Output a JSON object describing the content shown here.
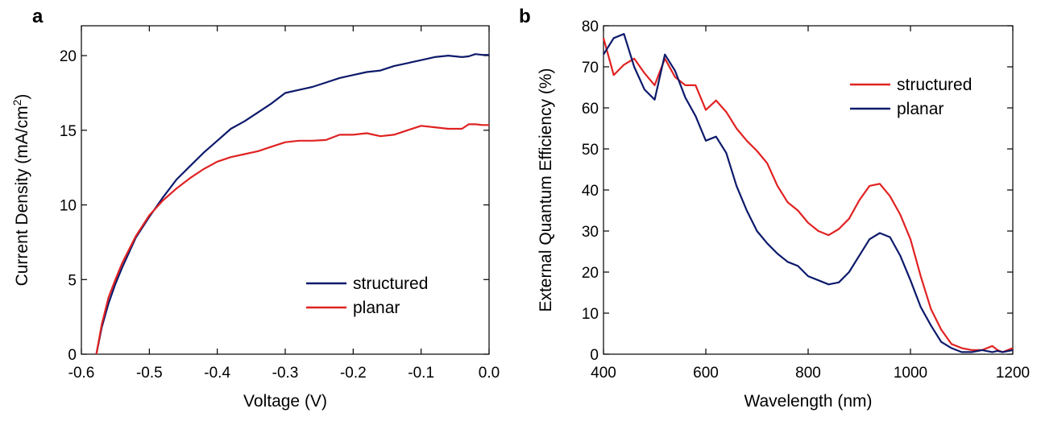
{
  "chart_data": [
    {
      "type": "line",
      "panel_label": "a",
      "xlabel": "Voltage (V)",
      "ylabel_main": "Current Density (mA/cm",
      "ylabel_sup": "2",
      "ylabel_end": ")",
      "xlim": [
        -0.6,
        0.0
      ],
      "ylim": [
        0,
        22
      ],
      "xticks": [
        -0.6,
        -0.5,
        -0.4,
        -0.3,
        -0.2,
        -0.1,
        0.0
      ],
      "xtick_labels": [
        "-0.6",
        "-0.5",
        "-0.4",
        "-0.3",
        "-0.2",
        "-0.1",
        "0.0"
      ],
      "yticks": [
        0,
        5,
        10,
        15,
        20
      ],
      "ytick_labels": [
        "0",
        "5",
        "10",
        "15",
        "20"
      ],
      "legend_position": "bottom-right",
      "series": [
        {
          "name": "structured",
          "color": "#0d1a6b",
          "x": [
            -0.578,
            -0.57,
            -0.56,
            -0.55,
            -0.54,
            -0.52,
            -0.5,
            -0.48,
            -0.46,
            -0.44,
            -0.42,
            -0.4,
            -0.38,
            -0.36,
            -0.34,
            -0.32,
            -0.3,
            -0.28,
            -0.26,
            -0.24,
            -0.22,
            -0.2,
            -0.18,
            -0.16,
            -0.14,
            -0.12,
            -0.1,
            -0.08,
            -0.06,
            -0.04,
            -0.03,
            -0.02,
            -0.01,
            0.0
          ],
          "y": [
            0,
            1.8,
            3.4,
            4.7,
            5.8,
            7.8,
            9.2,
            10.5,
            11.7,
            12.6,
            13.5,
            14.3,
            15.1,
            15.6,
            16.2,
            16.8,
            17.5,
            17.7,
            17.9,
            18.2,
            18.5,
            18.7,
            18.9,
            19.0,
            19.3,
            19.5,
            19.7,
            19.9,
            20.0,
            19.9,
            19.95,
            20.1,
            20.05,
            20.05
          ]
        },
        {
          "name": "planar",
          "color": "#e02222",
          "x": [
            -0.578,
            -0.57,
            -0.56,
            -0.55,
            -0.54,
            -0.52,
            -0.5,
            -0.48,
            -0.46,
            -0.44,
            -0.42,
            -0.4,
            -0.38,
            -0.36,
            -0.34,
            -0.32,
            -0.3,
            -0.28,
            -0.26,
            -0.24,
            -0.22,
            -0.2,
            -0.18,
            -0.16,
            -0.14,
            -0.12,
            -0.1,
            -0.08,
            -0.06,
            -0.04,
            -0.03,
            -0.02,
            -0.01,
            0.0
          ],
          "y": [
            0,
            2.0,
            3.8,
            5.0,
            6.1,
            7.9,
            9.3,
            10.3,
            11.1,
            11.8,
            12.4,
            12.9,
            13.2,
            13.4,
            13.6,
            13.9,
            14.2,
            14.3,
            14.3,
            14.35,
            14.7,
            14.7,
            14.8,
            14.6,
            14.7,
            15.0,
            15.3,
            15.2,
            15.1,
            15.1,
            15.4,
            15.4,
            15.35,
            15.35
          ]
        }
      ]
    },
    {
      "type": "line",
      "panel_label": "b",
      "xlabel": "Wavelength (nm)",
      "ylabel": "External Quantum Efficiency (%)",
      "xlim": [
        400,
        1200
      ],
      "ylim": [
        0,
        80
      ],
      "xticks": [
        400,
        600,
        800,
        1000,
        1200
      ],
      "xtick_labels": [
        "400",
        "600",
        "800",
        "1000",
        "1200"
      ],
      "yticks": [
        0,
        10,
        20,
        30,
        40,
        50,
        60,
        70,
        80
      ],
      "ytick_labels": [
        "0",
        "10",
        "20",
        "30",
        "40",
        "50",
        "60",
        "70",
        "80"
      ],
      "legend_position": "top-right",
      "series": [
        {
          "name": "structured",
          "color": "#e02222",
          "x": [
            400,
            420,
            440,
            460,
            480,
            500,
            520,
            540,
            560,
            580,
            600,
            620,
            640,
            660,
            680,
            700,
            720,
            740,
            760,
            780,
            800,
            820,
            840,
            860,
            880,
            900,
            920,
            940,
            960,
            980,
            1000,
            1020,
            1040,
            1060,
            1080,
            1100,
            1120,
            1140,
            1160,
            1170,
            1180,
            1200
          ],
          "y": [
            77,
            68,
            70.5,
            72,
            68.5,
            65.5,
            72,
            67.5,
            65.5,
            65.5,
            59.5,
            61.8,
            59,
            55,
            52,
            49.5,
            46.5,
            41,
            37,
            35,
            32,
            30,
            29,
            30.5,
            33,
            37.5,
            41,
            41.5,
            38.5,
            34,
            28,
            19,
            11,
            6,
            2.5,
            1.5,
            1,
            1,
            2,
            1,
            0.5,
            1.5
          ]
        },
        {
          "name": "planar",
          "color": "#0d1a6b",
          "x": [
            400,
            420,
            440,
            460,
            480,
            500,
            520,
            540,
            560,
            580,
            600,
            620,
            640,
            660,
            680,
            700,
            720,
            740,
            760,
            780,
            800,
            820,
            840,
            860,
            880,
            900,
            920,
            940,
            960,
            980,
            1000,
            1020,
            1040,
            1060,
            1080,
            1100,
            1120,
            1140,
            1160,
            1170,
            1180,
            1200
          ],
          "y": [
            73,
            77,
            78,
            70,
            64.5,
            62,
            73,
            69,
            62.5,
            58,
            52,
            53,
            49,
            41,
            35,
            30,
            27,
            24.5,
            22.5,
            21.5,
            19,
            18,
            17,
            17.5,
            20,
            24,
            28,
            29.5,
            28.5,
            24,
            18,
            11.5,
            7,
            3,
            1.5,
            0.5,
            0.5,
            1,
            0.5,
            0.8,
            0.5,
            1
          ]
        }
      ]
    }
  ]
}
